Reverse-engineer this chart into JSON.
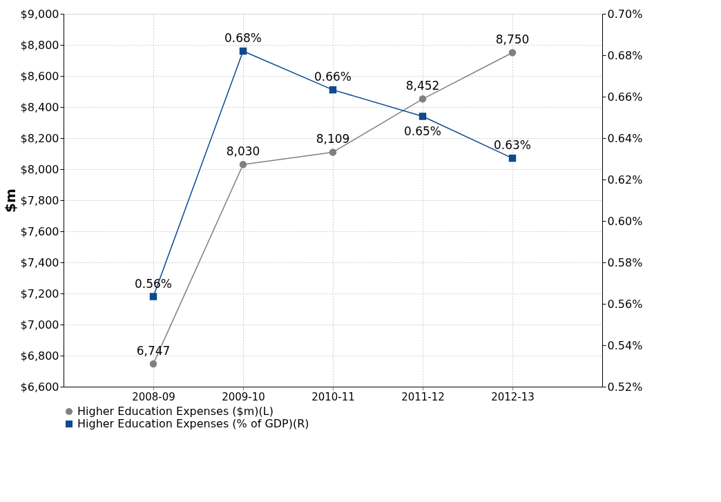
{
  "chart_data": {
    "type": "line",
    "categories": [
      "2008-09",
      "2009-10",
      "2010-11",
      "2011-12",
      "2012-13"
    ],
    "ylabel": "$m",
    "ylim": [
      6600,
      9000
    ],
    "yticks": [
      {
        "value": 6600,
        "label": "$6,600"
      },
      {
        "value": 6800,
        "label": "$6,800"
      },
      {
        "value": 7000,
        "label": "$7,000"
      },
      {
        "value": 7200,
        "label": "$7,200"
      },
      {
        "value": 7400,
        "label": "$7,400"
      },
      {
        "value": 7600,
        "label": "$7,600"
      },
      {
        "value": 7800,
        "label": "$7,800"
      },
      {
        "value": 8000,
        "label": "$8,000"
      },
      {
        "value": 8200,
        "label": "$8,200"
      },
      {
        "value": 8400,
        "label": "$8,400"
      },
      {
        "value": 8600,
        "label": "$8,600"
      },
      {
        "value": 8800,
        "label": "$8,800"
      },
      {
        "value": 9000,
        "label": "$9,000"
      }
    ],
    "y2lim": [
      0.52,
      0.7
    ],
    "y2ticks": [
      {
        "value": 0.52,
        "label": "0.52%"
      },
      {
        "value": 0.54,
        "label": "0.54%"
      },
      {
        "value": 0.56,
        "label": "0.56%"
      },
      {
        "value": 0.58,
        "label": "0.58%"
      },
      {
        "value": 0.6,
        "label": "0.60%"
      },
      {
        "value": 0.62,
        "label": "0.62%"
      },
      {
        "value": 0.64,
        "label": "0.64%"
      },
      {
        "value": 0.66,
        "label": "0.66%"
      },
      {
        "value": 0.68,
        "label": "0.68%"
      },
      {
        "value": 0.7,
        "label": "0.70%"
      }
    ],
    "series": [
      {
        "name": "Higher Education Expenses ($m)(L)",
        "color": "#808080",
        "marker": "circle",
        "values": [
          6747,
          8030,
          8109,
          8452,
          8750
        ],
        "value_labels": [
          "6,747",
          "8,030",
          "8,109",
          "8,452",
          "8,750"
        ]
      },
      {
        "name": "Higher Education Expenses (% of GDP)(R)",
        "color": "#0d4a8f",
        "marker": "square",
        "axis": "y2",
        "values": [
          0.5635,
          0.682,
          0.6633,
          0.6505,
          0.6303
        ],
        "value_labels": [
          "0.56%",
          "0.68%",
          "0.66%",
          "0.65%",
          "0.63%"
        ]
      }
    ],
    "grid": true,
    "legend": "bottom",
    "line_style": "solid"
  }
}
